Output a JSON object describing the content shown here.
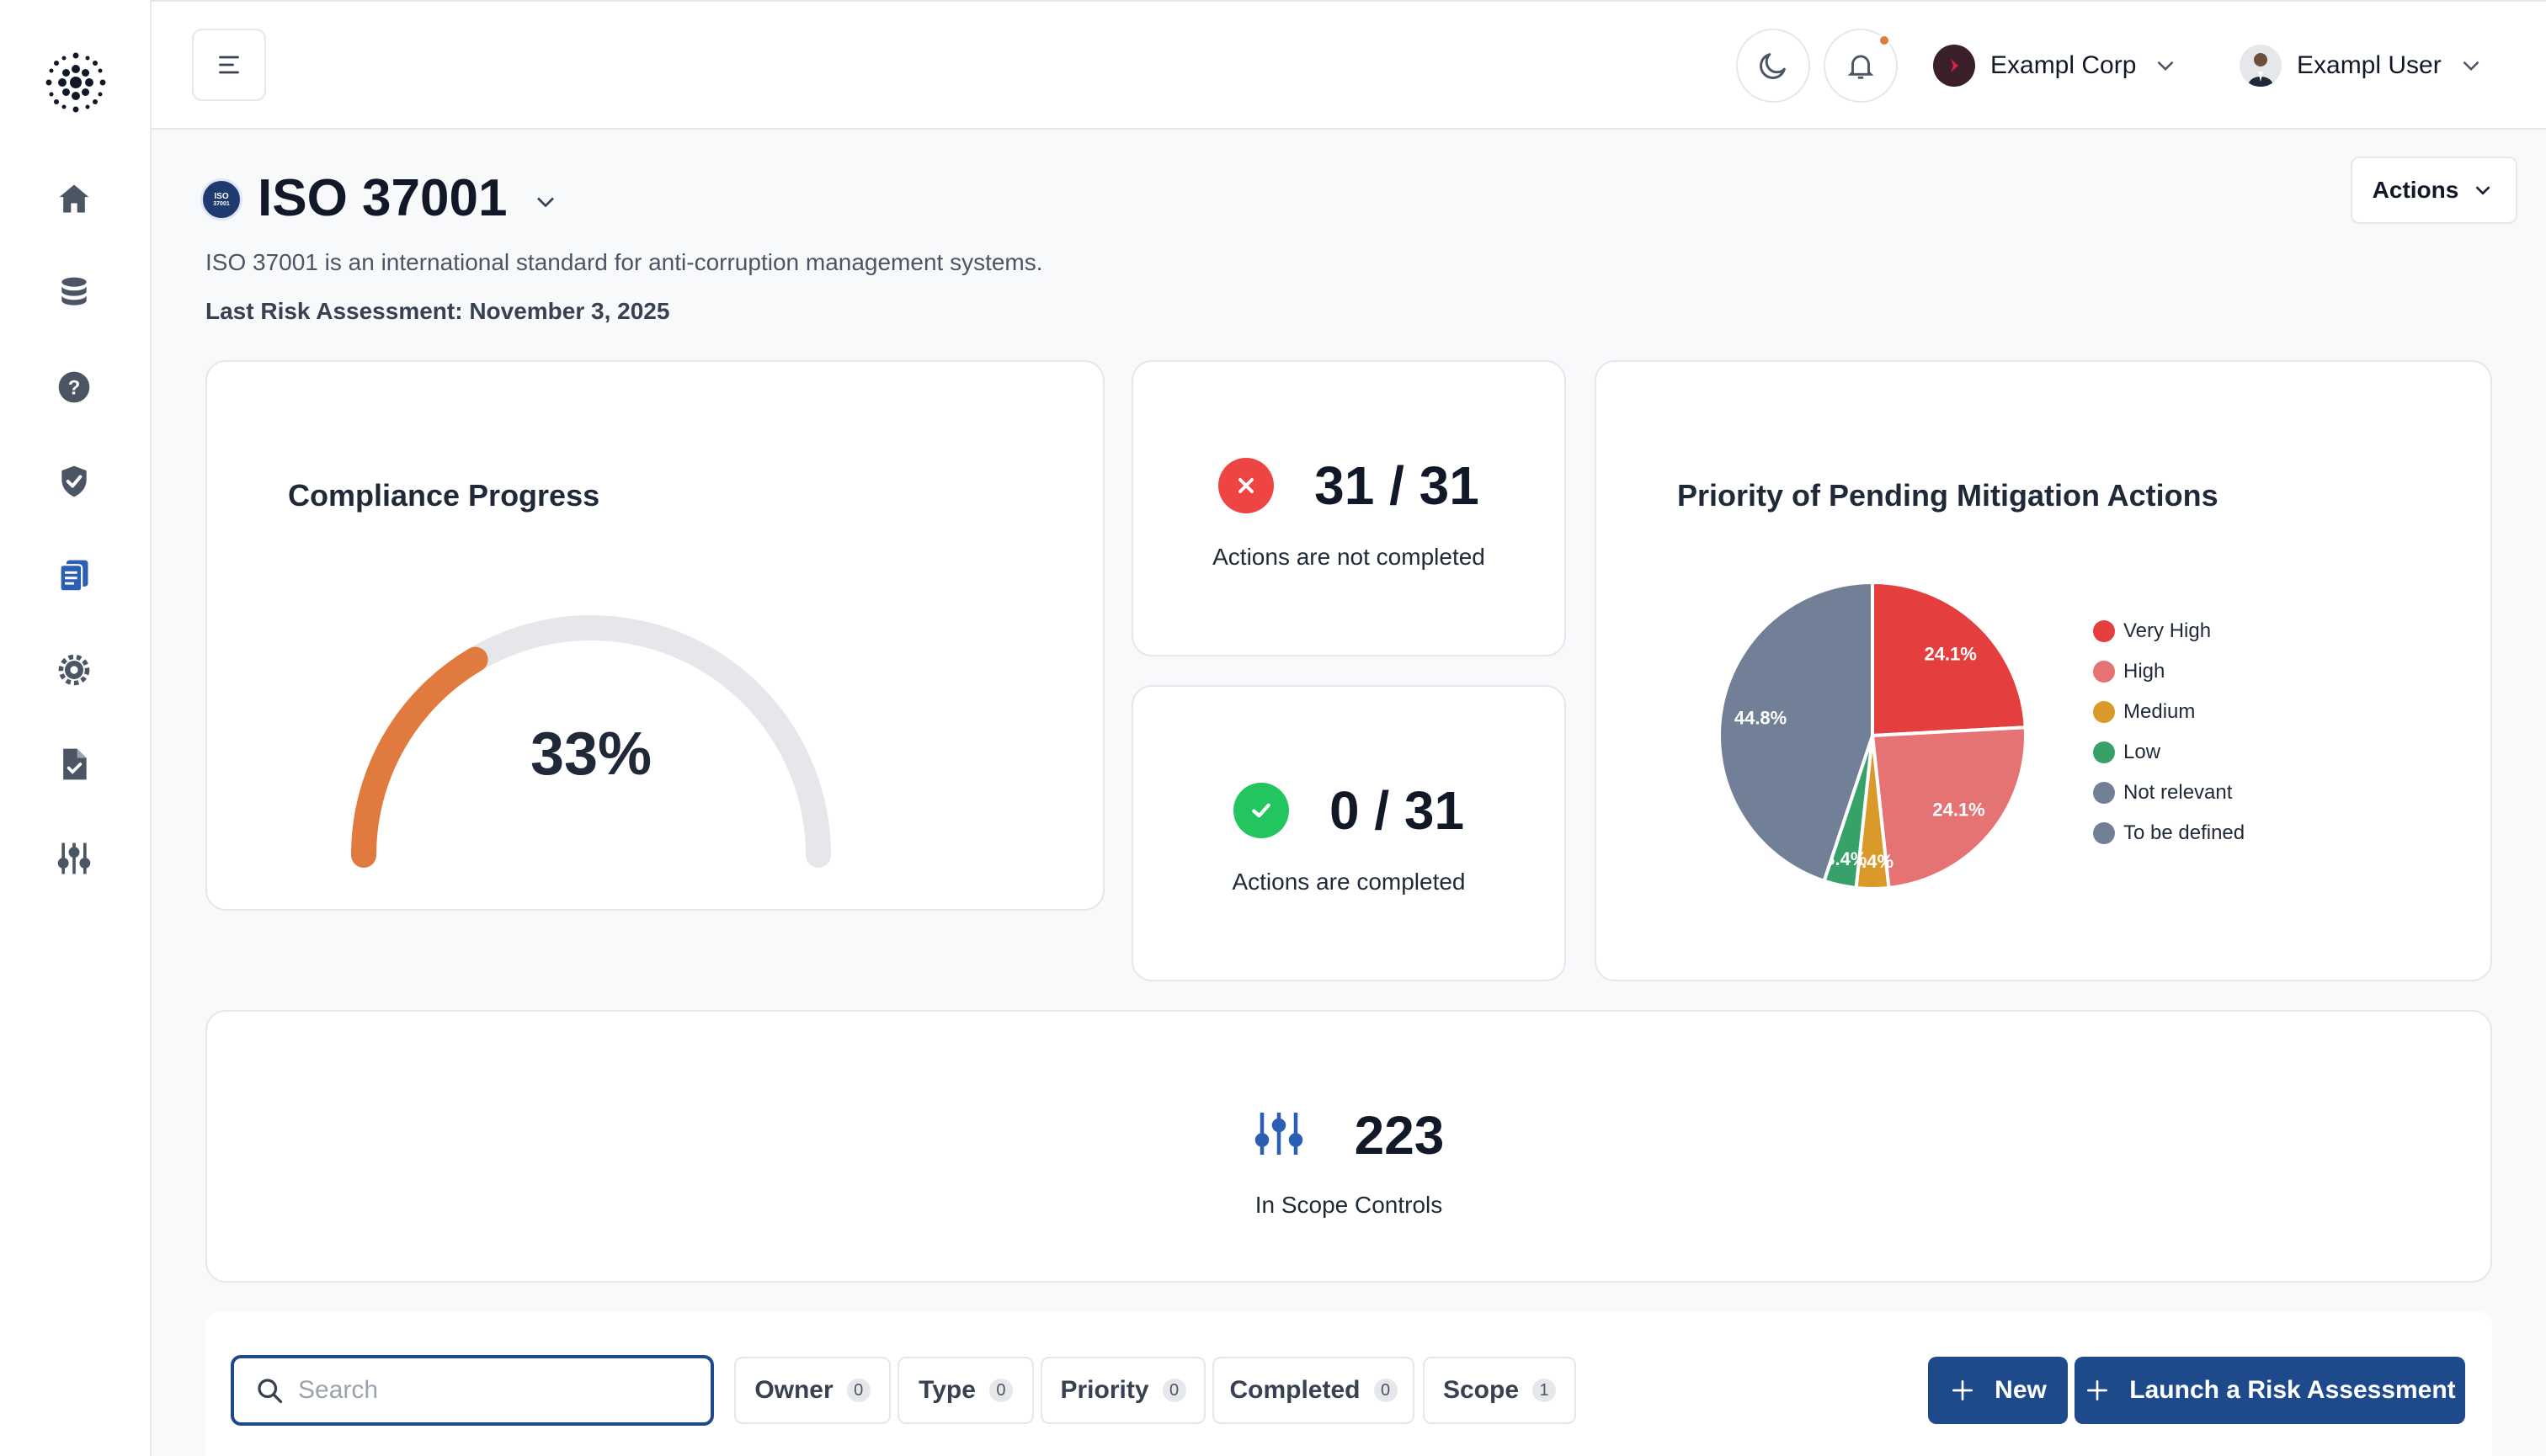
{
  "header": {
    "org_name": "Exampl Corp",
    "user_name": "Exampl User"
  },
  "page": {
    "badge_line1": "ISO",
    "badge_line2": "37001",
    "title": "ISO 37001",
    "description": "ISO 37001 is an international standard for anti-corruption management systems.",
    "last_risk_assessment": "Last Risk Assessment: November 3, 2025",
    "actions_label": "Actions"
  },
  "compliance": {
    "title": "Compliance Progress",
    "value_label": "33%",
    "value": 0.33,
    "accent": "#e07a3e"
  },
  "not_completed": {
    "value": "31 / 31",
    "label": "Actions are not completed",
    "color": "#ef4444"
  },
  "completed": {
    "value": "0 / 31",
    "label": "Actions are completed",
    "color": "#22c55e"
  },
  "priority": {
    "title": "Priority of Pending Mitigation Actions",
    "legend": [
      {
        "label": "Very High",
        "color": "#e53e3e"
      },
      {
        "label": "High",
        "color": "#e57373"
      },
      {
        "label": "Medium",
        "color": "#d99a2b"
      },
      {
        "label": "Low",
        "color": "#38a169"
      },
      {
        "label": "Not relevant",
        "color": "#718096"
      },
      {
        "label": "To be defined",
        "color": "#718096"
      }
    ]
  },
  "chart_data": {
    "type": "pie",
    "title": "Priority of Pending Mitigation Actions",
    "categories": [
      "Very High",
      "High",
      "Medium",
      "Low",
      "Not relevant"
    ],
    "values": [
      24.1,
      24.1,
      3.4,
      3.4,
      44.8
    ],
    "labels": [
      "24.1%",
      "24.1%",
      "3.4%",
      "3.4%",
      "44.8%"
    ],
    "colors": [
      "#e53e3e",
      "#e57373",
      "#d99a2b",
      "#38a169",
      "#718096"
    ],
    "legend_position": "right"
  },
  "scope": {
    "value": "223",
    "label": "In Scope Controls"
  },
  "toolbar": {
    "search_placeholder": "Search",
    "filters": [
      {
        "label": "Owner",
        "count": "0"
      },
      {
        "label": "Type",
        "count": "0"
      },
      {
        "label": "Priority",
        "count": "0"
      },
      {
        "label": "Completed",
        "count": "0"
      },
      {
        "label": "Scope",
        "count": "1"
      }
    ],
    "new_label": "New",
    "launch_label": "Launch a Risk Assessment"
  },
  "colors": {
    "primary": "#1e4a8c",
    "nav_active": "#2b5fb4"
  },
  "icons": {
    "nav": [
      "home-icon",
      "database-icon",
      "help-icon",
      "shield-check-icon",
      "clipboard-list-icon",
      "settings-cog-icon",
      "file-check-icon",
      "sliders-icon"
    ]
  }
}
